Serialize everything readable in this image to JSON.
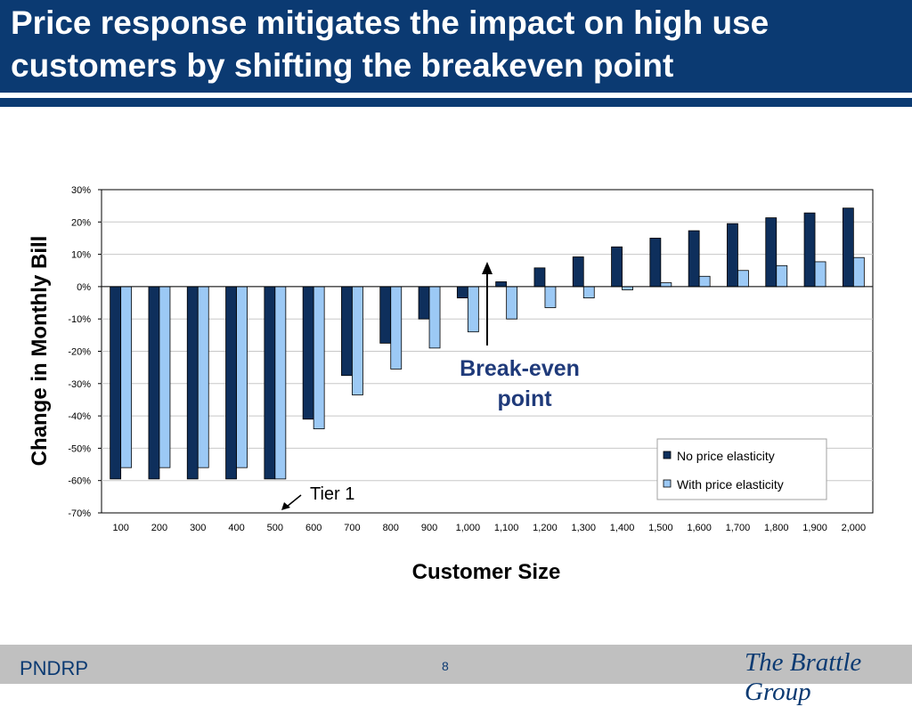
{
  "slide": {
    "title": "Price response mitigates the impact on high use customers by shifting the breakeven point",
    "footer_left": "PNDRP",
    "page_number": "8",
    "brand": "The Brattle Group"
  },
  "colors": {
    "title_bg": "#0b3a72",
    "series_no_elasticity": "#0e2f5c",
    "series_with_elasticity": "#9cc9f5",
    "annotation_text": "#1f3a7a"
  },
  "chart_data": {
    "type": "bar",
    "xlabel": "Customer Size",
    "ylabel": "Change in Monthly Bill",
    "ylim": [
      -70,
      30
    ],
    "yticks": [
      30,
      20,
      10,
      0,
      -10,
      -20,
      -30,
      -40,
      -50,
      -60,
      -70
    ],
    "ytick_labels": [
      "30%",
      "20%",
      "10%",
      "0%",
      "-10%",
      "-20%",
      "-30%",
      "-40%",
      "-50%",
      "-60%",
      "-70%"
    ],
    "categories": [
      "100",
      "200",
      "300",
      "400",
      "500",
      "600",
      "700",
      "800",
      "900",
      "1,000",
      "1,100",
      "1,200",
      "1,300",
      "1,400",
      "1,500",
      "1,600",
      "1,700",
      "1,800",
      "1,900",
      "2,000"
    ],
    "series": [
      {
        "name": "No price elasticity",
        "values": [
          -59.5,
          -59.5,
          -59.5,
          -59.5,
          -59.5,
          -41,
          -27.5,
          -17.5,
          -10,
          -3.5,
          1.5,
          5.8,
          9.2,
          12.3,
          15,
          17.3,
          19.5,
          21.3,
          22.8,
          24.3
        ]
      },
      {
        "name": "With price elasticity",
        "values": [
          -56,
          -56,
          -56,
          -56,
          -59.5,
          -44,
          -33.5,
          -25.5,
          -19,
          -14,
          -10,
          -6.5,
          -3.5,
          -1,
          1.2,
          3.2,
          5,
          6.5,
          7.7,
          9
        ]
      }
    ],
    "legend_position": "bottom-right",
    "grid": true,
    "annotations": [
      {
        "text": "Break-even point",
        "category": "1,000"
      },
      {
        "text": "Tier 1",
        "category": "500"
      }
    ]
  }
}
